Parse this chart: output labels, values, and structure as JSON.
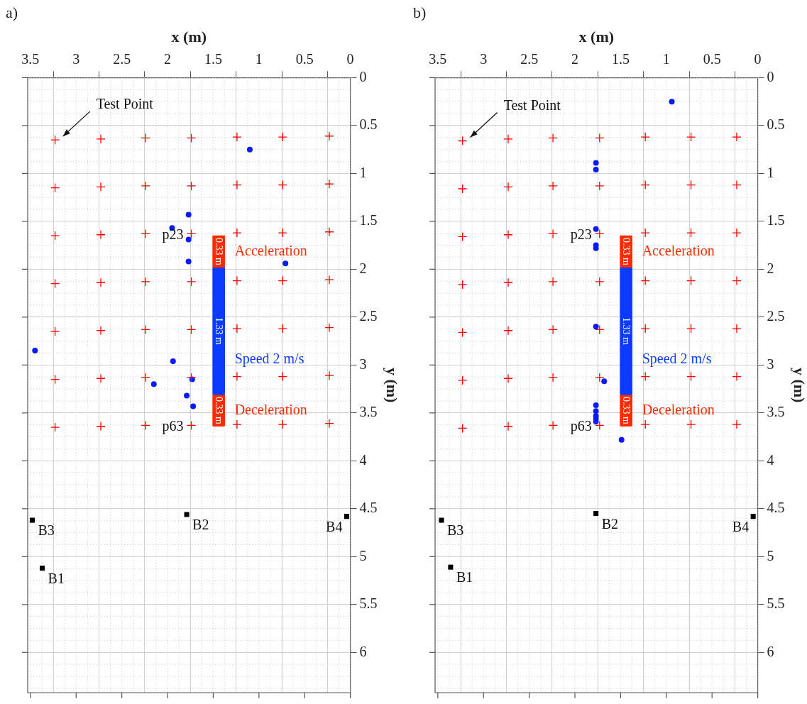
{
  "chart_data": [
    {
      "type": "scatter",
      "title": "a)",
      "xlabel": "x (m)",
      "ylabel": "y (m)",
      "xlim": [
        3.53,
        0
      ],
      "xticks": [
        3.5,
        3,
        2.5,
        2,
        1.5,
        1,
        0.5,
        0
      ],
      "ylim": [
        6.42,
        0
      ],
      "yticks": [
        0,
        0.5,
        1,
        1.5,
        2,
        2.5,
        3,
        3.5,
        4,
        4.5,
        5,
        5.5,
        6
      ],
      "grid": true,
      "legend": false,
      "series": [
        {
          "marker": "cross",
          "color": "#ff0000",
          "x": [
            3.23,
            2.73,
            2.24,
            1.74,
            1.24,
            0.74,
            0.23,
            3.23,
            2.73,
            2.24,
            1.74,
            1.24,
            0.74,
            0.23,
            3.23,
            2.73,
            2.24,
            1.74,
            1.24,
            0.74,
            0.23,
            3.23,
            2.73,
            2.24,
            1.74,
            1.24,
            0.74,
            0.23,
            3.23,
            2.73,
            2.24,
            1.74,
            1.24,
            0.74,
            0.23,
            3.23,
            2.73,
            2.24,
            1.74,
            1.24,
            0.74,
            0.23,
            3.23,
            2.73,
            2.24,
            1.74,
            1.24,
            0.74,
            0.23
          ],
          "values": [
            0.65,
            0.64,
            0.63,
            0.63,
            0.62,
            0.62,
            0.61,
            1.15,
            1.14,
            1.13,
            1.13,
            1.12,
            1.12,
            1.11,
            1.65,
            1.64,
            1.63,
            1.63,
            1.62,
            1.62,
            1.61,
            2.15,
            2.14,
            2.13,
            2.13,
            2.12,
            2.12,
            2.11,
            2.65,
            2.64,
            2.63,
            2.63,
            2.62,
            2.62,
            2.61,
            3.15,
            3.14,
            3.13,
            3.13,
            3.12,
            3.12,
            3.11,
            3.65,
            3.64,
            3.63,
            3.63,
            3.62,
            3.62,
            3.61
          ]
        },
        {
          "marker": "circle",
          "color": "#0a1aff",
          "x": [
            1.1,
            1.77,
            1.95,
            1.77,
            1.77,
            0.71,
            3.45,
            1.94,
            1.73,
            2.15,
            1.79,
            1.72
          ],
          "values": [
            0.75,
            1.43,
            1.57,
            1.69,
            1.92,
            1.94,
            2.85,
            2.96,
            3.15,
            3.2,
            3.32,
            3.43
          ]
        },
        {
          "marker": "square",
          "color": "#000000",
          "x": [
            3.37,
            1.79,
            3.48,
            0.04
          ],
          "values": [
            5.12,
            4.56,
            4.62,
            4.58
          ]
        },
        {
          "type": "bar",
          "x": [
            1.44
          ],
          "base": [
            1.65
          ],
          "values": [
            0.33
          ],
          "color": "#ff2a00",
          "value_labels": [
            "0.33 m"
          ]
        },
        {
          "type": "bar",
          "x": [
            1.44
          ],
          "base": [
            1.98
          ],
          "values": [
            1.33
          ],
          "color": "#0a3cff",
          "value_labels": [
            "1.33 m"
          ]
        },
        {
          "type": "bar",
          "x": [
            1.44
          ],
          "base": [
            3.31
          ],
          "values": [
            0.33
          ],
          "color": "#ff2a00",
          "value_labels": [
            "0.33 m"
          ]
        }
      ],
      "annotations": [
        "Test Point",
        {
          "text": "p23",
          "x": 1.74,
          "y": 1.63
        },
        {
          "text": "p63",
          "x": 1.74,
          "y": 3.63
        },
        "Acceleration",
        "Speed 2 m/s",
        "Deceleration",
        {
          "text": "B1",
          "x": 3.37,
          "y": 5.12
        },
        {
          "text": "B2",
          "x": 1.79,
          "y": 4.56
        },
        {
          "text": "B3",
          "x": 3.48,
          "y": 4.62
        },
        {
          "text": "B4",
          "x": 0.04,
          "y": 4.58
        }
      ]
    },
    {
      "type": "scatter",
      "title": "b)",
      "xlabel": "x (m)",
      "ylabel": "y (m)",
      "xlim": [
        3.53,
        0
      ],
      "xticks": [
        3.5,
        3,
        2.5,
        2,
        1.5,
        1,
        0.5,
        0
      ],
      "ylim": [
        6.42,
        0
      ],
      "yticks": [
        0,
        0.5,
        1,
        1.5,
        2,
        2.5,
        3,
        3.5,
        4,
        4.5,
        5,
        5.5,
        6
      ],
      "grid": true,
      "legend": false,
      "series": [
        {
          "marker": "cross",
          "color": "#ff0000",
          "x": [
            3.23,
            2.73,
            2.24,
            1.73,
            1.23,
            0.73,
            0.23,
            3.23,
            2.73,
            2.24,
            1.73,
            1.23,
            0.73,
            0.23,
            3.23,
            2.73,
            2.24,
            1.73,
            1.23,
            0.73,
            0.23,
            3.23,
            2.73,
            2.24,
            1.73,
            1.23,
            0.73,
            0.23,
            3.23,
            2.73,
            2.24,
            1.73,
            1.23,
            0.73,
            0.23,
            3.23,
            2.73,
            2.24,
            1.73,
            1.23,
            0.73,
            0.23,
            3.23,
            2.73,
            2.24,
            1.73,
            1.23,
            0.73,
            0.23
          ],
          "values": [
            0.66,
            0.64,
            0.63,
            0.63,
            0.62,
            0.62,
            0.62,
            1.16,
            1.14,
            1.13,
            1.13,
            1.12,
            1.12,
            1.12,
            1.66,
            1.64,
            1.63,
            1.63,
            1.62,
            1.62,
            1.62,
            2.16,
            2.14,
            2.13,
            2.13,
            2.12,
            2.12,
            2.12,
            2.66,
            2.64,
            2.63,
            2.63,
            2.62,
            2.62,
            2.62,
            3.16,
            3.14,
            3.13,
            3.13,
            3.12,
            3.12,
            3.12,
            3.66,
            3.64,
            3.63,
            3.63,
            3.62,
            3.62,
            3.62
          ]
        },
        {
          "marker": "circle",
          "color": "#0a1aff",
          "x": [
            0.94,
            1.77,
            1.77,
            1.77,
            1.77,
            1.77,
            1.77,
            1.68,
            1.77,
            1.77,
            1.77,
            1.77,
            1.77,
            1.49
          ],
          "values": [
            0.25,
            0.89,
            0.96,
            1.58,
            1.75,
            1.78,
            2.6,
            3.17,
            3.42,
            3.48,
            3.53,
            3.56,
            3.59,
            3.78
          ]
        },
        {
          "marker": "square",
          "color": "#000000",
          "x": [
            3.36,
            1.77,
            3.46,
            0.05
          ],
          "values": [
            5.11,
            4.55,
            4.62,
            4.58
          ]
        },
        {
          "type": "bar",
          "x": [
            1.44
          ],
          "base": [
            1.65
          ],
          "values": [
            0.33
          ],
          "color": "#ff2a00",
          "value_labels": [
            "0.33 m"
          ]
        },
        {
          "type": "bar",
          "x": [
            1.44
          ],
          "base": [
            1.98
          ],
          "values": [
            1.33
          ],
          "color": "#0a3cff",
          "value_labels": [
            "1.33 m"
          ]
        },
        {
          "type": "bar",
          "x": [
            1.44
          ],
          "base": [
            3.31
          ],
          "values": [
            0.33
          ],
          "color": "#ff2a00",
          "value_labels": [
            "0.33 m"
          ]
        }
      ],
      "annotations": [
        "Test Point",
        {
          "text": "p23",
          "x": 1.73,
          "y": 1.63
        },
        {
          "text": "p63",
          "x": 1.73,
          "y": 3.63
        },
        "Acceleration",
        "Speed 2 m/s",
        "Deceleration",
        {
          "text": "B1",
          "x": 3.36,
          "y": 5.11
        },
        {
          "text": "B2",
          "x": 1.77,
          "y": 4.55
        },
        {
          "text": "B3",
          "x": 3.46,
          "y": 4.62
        },
        {
          "text": "B4",
          "x": 0.05,
          "y": 4.58
        }
      ]
    }
  ]
}
